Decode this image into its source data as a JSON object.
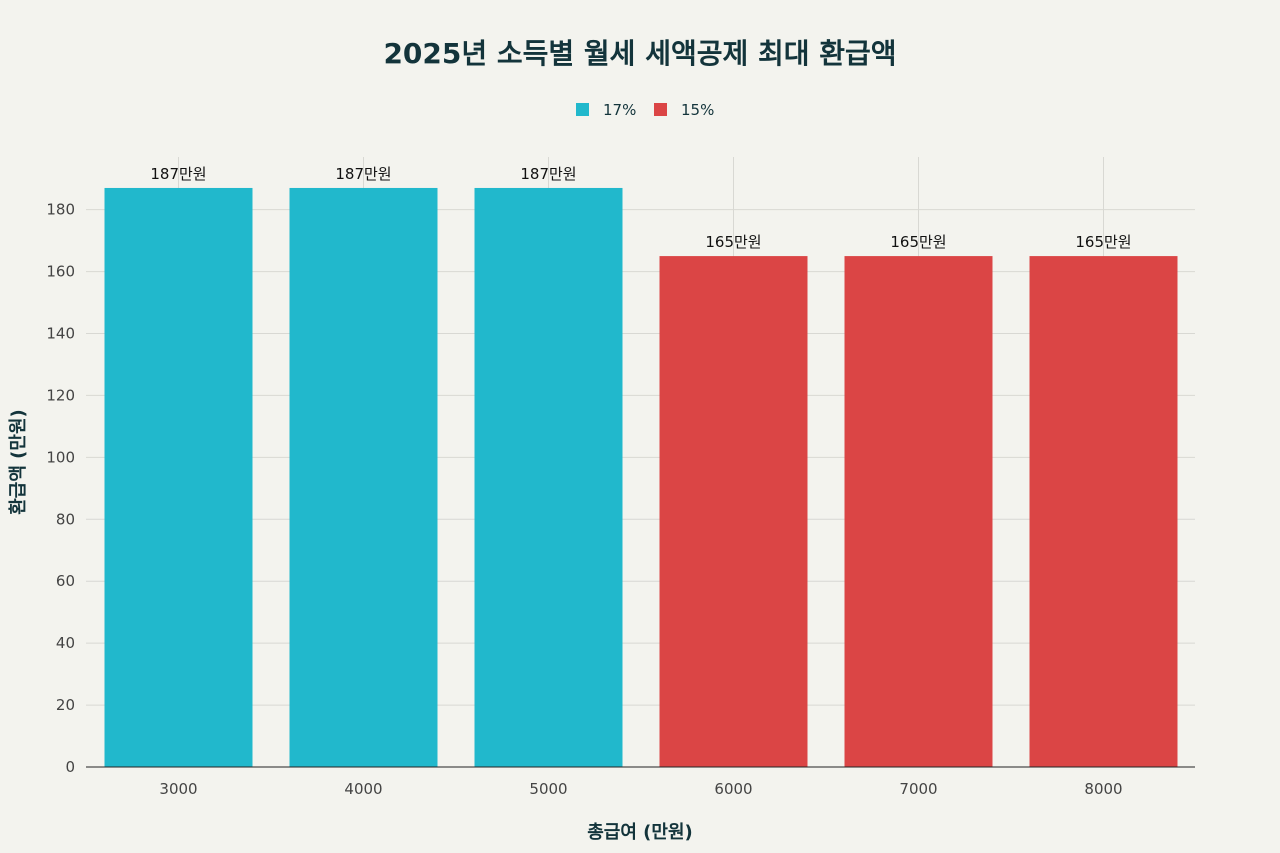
{
  "chart_data": {
    "type": "bar",
    "title": "2025년 소득별 월세 세액공제 최대 환급액",
    "xlabel": "총급여 (만원)",
    "ylabel": "환급액 (만원)",
    "categories": [
      "3000",
      "4000",
      "5000",
      "6000",
      "7000",
      "8000"
    ],
    "values": [
      187,
      187,
      187,
      165,
      165,
      165
    ],
    "data_labels": [
      "187만원",
      "187만원",
      "187만원",
      "165만원",
      "165만원",
      "165만원"
    ],
    "bar_series": [
      "17%",
      "17%",
      "17%",
      "15%",
      "15%",
      "15%"
    ],
    "legend": [
      {
        "name": "17%",
        "color": "#21b8cc"
      },
      {
        "name": "15%",
        "color": "#db4545"
      }
    ],
    "legend_position": "top-center",
    "ylim": [
      0,
      197
    ],
    "yticks": [
      0,
      20,
      40,
      60,
      80,
      100,
      120,
      140,
      160,
      180
    ],
    "grid": true
  }
}
